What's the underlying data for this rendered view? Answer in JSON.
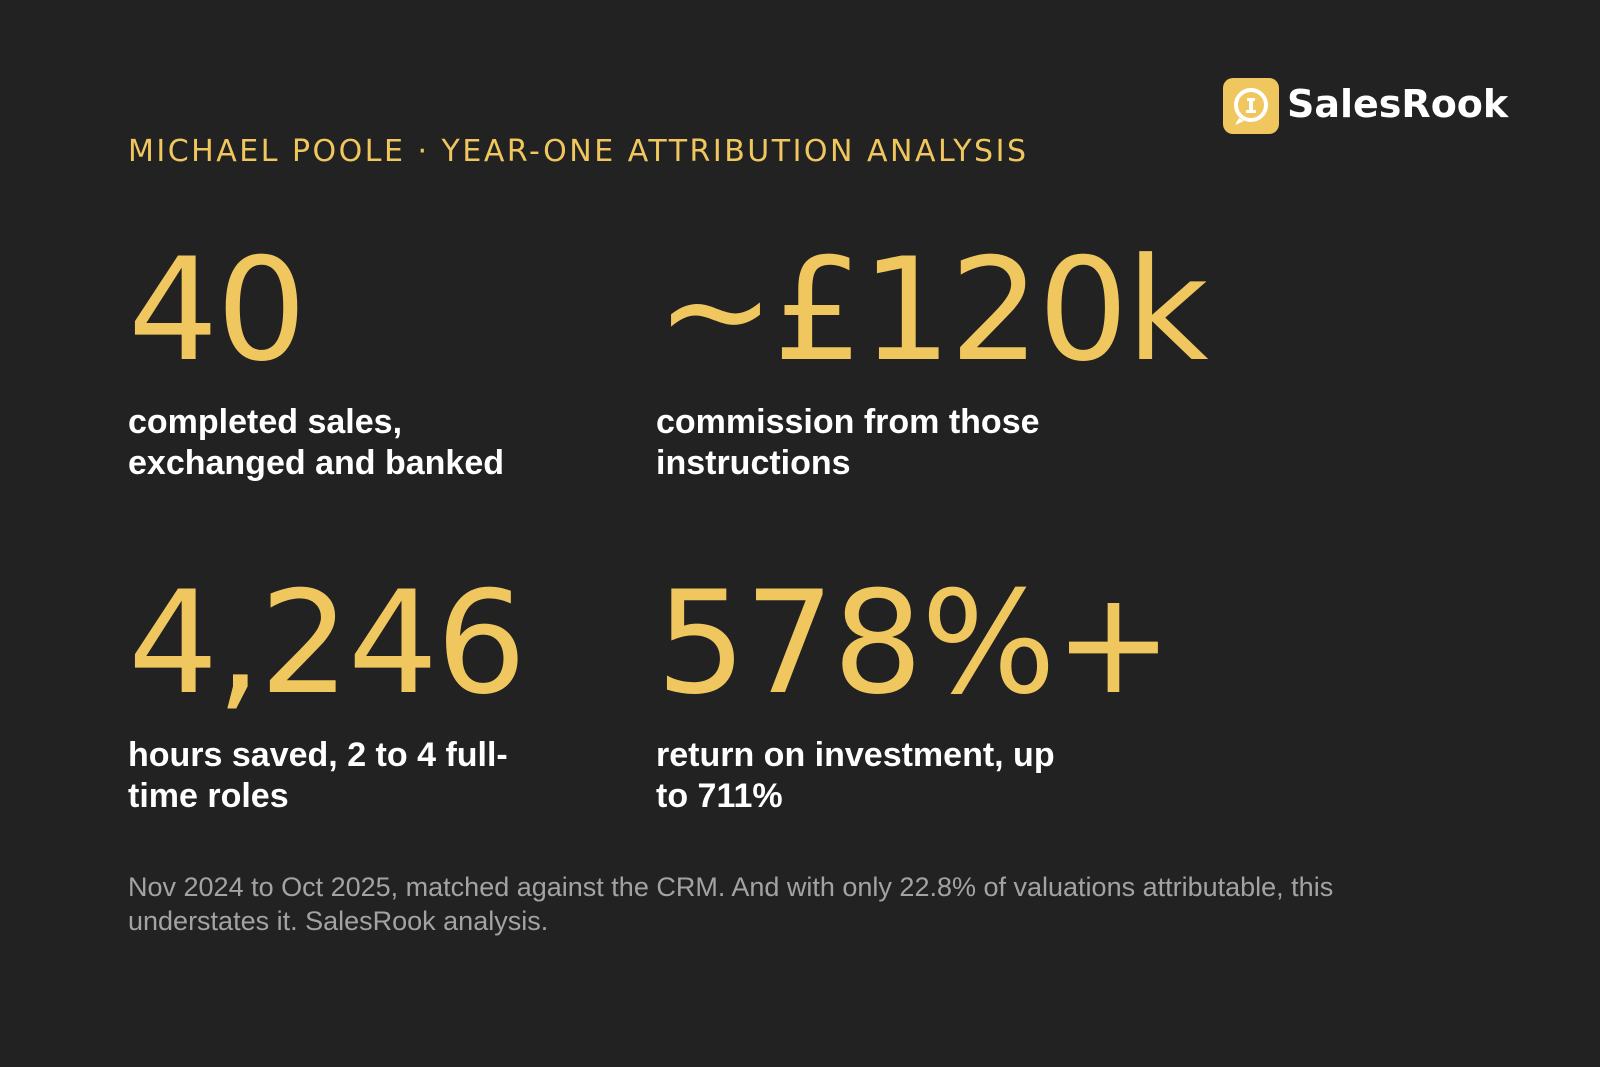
{
  "brand": "SalesRook",
  "header": "MICHAEL POOLE · YEAR-ONE ATTRIBUTION ANALYSIS",
  "stats": [
    {
      "value": "40",
      "label": "completed sales, exchanged and banked"
    },
    {
      "value": "~£120k",
      "label": "commission from those instructions"
    },
    {
      "value": "4,246",
      "label": "hours saved, 2 to 4 full-time roles"
    },
    {
      "value": "578%+",
      "label": "return on investment, up to 711%"
    }
  ],
  "footnote": "Nov 2024 to Oct 2025, matched against the CRM. And with only 22.8% of valuations attributable, this understates it. SalesRook analysis."
}
